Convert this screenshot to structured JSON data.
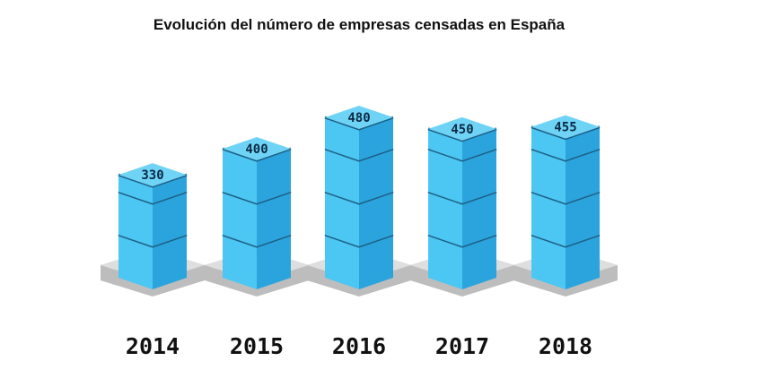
{
  "chart_data": {
    "type": "bar",
    "title": "Evolución del número de empresas censadas en España",
    "categories": [
      "2014",
      "2015",
      "2016",
      "2017",
      "2018"
    ],
    "values": [
      330,
      400,
      480,
      450,
      455
    ],
    "value_labels": [
      "330",
      "400",
      "480",
      "450",
      "455"
    ],
    "grid": false,
    "colors": {
      "cube_front_light": "#4cc6f2",
      "cube_front_dark": "#2ba4dd",
      "cube_top": "#6fd3f6",
      "cube_seam": "#1e5f86",
      "base_top": "#dedede",
      "base_side": "#bdbdbd"
    }
  }
}
